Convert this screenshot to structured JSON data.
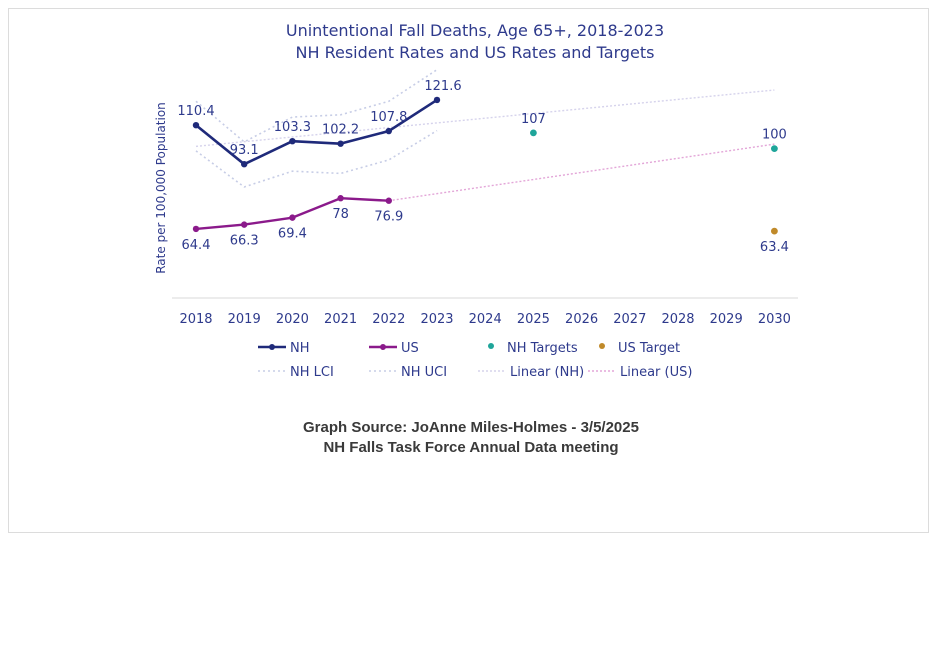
{
  "chart_data": {
    "type": "line",
    "title_lines": [
      "Unintentional Fall Deaths, Age 65+, 2018-2023",
      "NH Resident Rates and US Rates and Targets"
    ],
    "ylabel": "Rate per 100,000 Population",
    "x": [
      "2018",
      "2019",
      "2020",
      "2021",
      "2022",
      "2023",
      "2024",
      "2025",
      "2026",
      "2027",
      "2028",
      "2029",
      "2030"
    ],
    "ylim": [
      20,
      130
    ],
    "grid": false,
    "series": [
      {
        "name": "NH",
        "color": "#1f2a7a",
        "points": [
          [
            "2018",
            110.4
          ],
          [
            "2019",
            93.1
          ],
          [
            "2020",
            103.3
          ],
          [
            "2021",
            102.2
          ],
          [
            "2022",
            107.8
          ],
          [
            "2023",
            121.6
          ]
        ],
        "labels": [
          "110.4",
          "93.1",
          "103.3",
          "102.2",
          "107.8",
          "121.6"
        ]
      },
      {
        "name": "US",
        "color": "#8b1a8b",
        "points": [
          [
            "2018",
            64.4
          ],
          [
            "2019",
            66.3
          ],
          [
            "2020",
            69.4
          ],
          [
            "2021",
            78
          ],
          [
            "2022",
            76.9
          ]
        ],
        "labels": [
          "64.4",
          "66.3",
          "69.4",
          "78",
          "76.9"
        ]
      },
      {
        "name": "NH Targets",
        "color": "#1fa59a",
        "points": [
          [
            "2025",
            107
          ],
          [
            "2030",
            100
          ]
        ],
        "labels": [
          "107",
          "100"
        ]
      },
      {
        "name": "US Target",
        "color": "#c08a2a",
        "points": [
          [
            "2030",
            63.4
          ]
        ],
        "labels": [
          "63.4"
        ]
      },
      {
        "name": "NH LCI",
        "color": "#c7cde6",
        "points": [
          [
            "2018",
            99
          ],
          [
            "2019",
            83
          ],
          [
            "2020",
            90
          ],
          [
            "2021",
            89
          ],
          [
            "2022",
            95
          ],
          [
            "2023",
            108
          ]
        ]
      },
      {
        "name": "NH UCI",
        "color": "#c7cde6",
        "points": [
          [
            "2018",
            121
          ],
          [
            "2019",
            103
          ],
          [
            "2020",
            114
          ],
          [
            "2021",
            115
          ],
          [
            "2022",
            121
          ],
          [
            "2023",
            135
          ]
        ]
      },
      {
        "name": "Linear (NH)",
        "color": "#d6d3ec",
        "points": [
          [
            "2018",
            101
          ],
          [
            "2030",
            126
          ]
        ]
      },
      {
        "name": "Linear (US)",
        "color": "#e3a6d8",
        "points": [
          [
            "2022",
            76.9
          ],
          [
            "2030",
            102
          ]
        ]
      }
    ],
    "legend": [
      "NH",
      "US",
      "NH Targets",
      "US Target",
      "NH LCI",
      "NH UCI",
      "Linear (NH)",
      "Linear (US)"
    ],
    "legend_position": "bottom"
  },
  "source": {
    "line1": "Graph Source: JoAnne Miles-Holmes - 3/5/2025",
    "line2": "NH Falls Task Force Annual Data meeting"
  }
}
